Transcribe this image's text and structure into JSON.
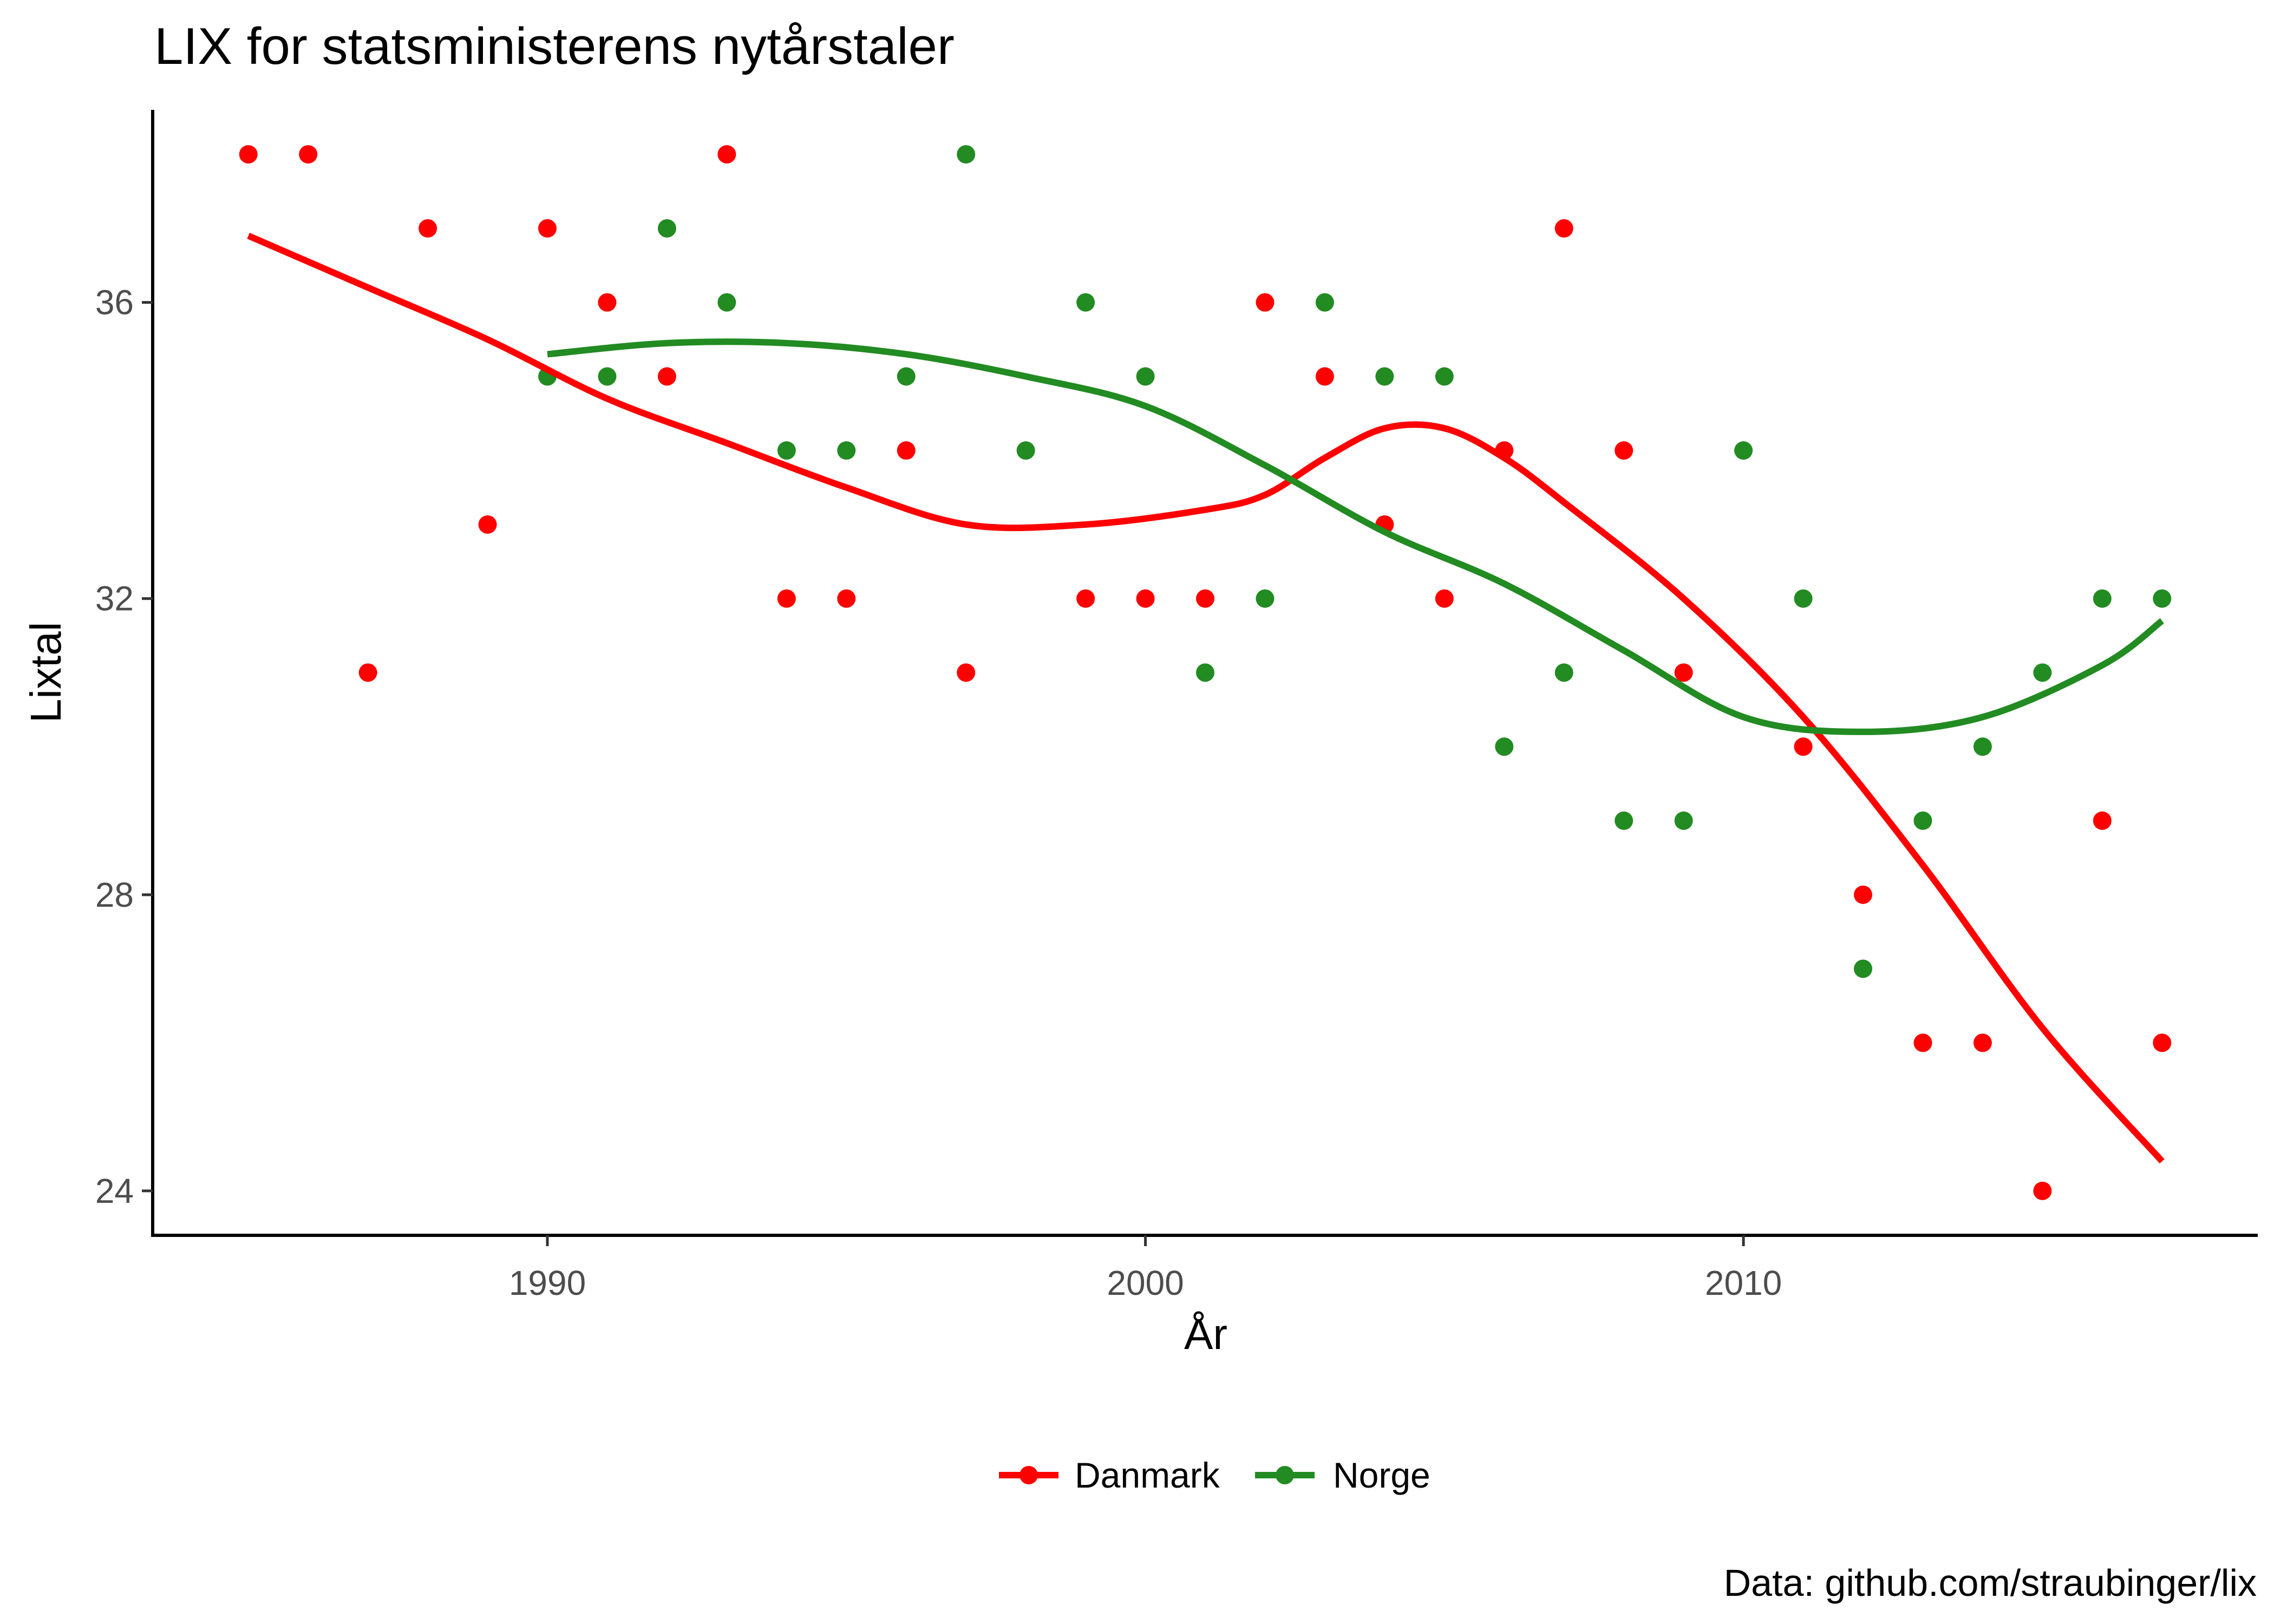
{
  "chart_data": {
    "type": "scatter",
    "title": "LIX for statsministerens nytårstaler",
    "xlabel": "År",
    "ylabel": "Lixtal",
    "caption": "Data: github.com/straubinger/lix",
    "xlim": [
      1983.4,
      2018.6
    ],
    "ylim": [
      23.4,
      38.6
    ],
    "xticks": [
      1990,
      2000,
      2010
    ],
    "yticks": [
      24,
      28,
      32,
      36
    ],
    "grid": false,
    "legend_position": "bottom",
    "colors": {
      "Danmark": "#ff0000",
      "Norge": "#228b22"
    },
    "series": [
      {
        "name": "Danmark",
        "points": [
          [
            1985,
            38
          ],
          [
            1986,
            38
          ],
          [
            1987,
            31
          ],
          [
            1988,
            37
          ],
          [
            1989,
            33
          ],
          [
            1990,
            37
          ],
          [
            1991,
            36
          ],
          [
            1992,
            35
          ],
          [
            1993,
            38
          ],
          [
            1994,
            32
          ],
          [
            1995,
            32
          ],
          [
            1996,
            34
          ],
          [
            1997,
            31
          ],
          [
            1999,
            32
          ],
          [
            2000,
            32
          ],
          [
            2001,
            32
          ],
          [
            2002,
            36
          ],
          [
            2003,
            35
          ],
          [
            2004,
            33
          ],
          [
            2005,
            32
          ],
          [
            2006,
            34
          ],
          [
            2007,
            37
          ],
          [
            2008,
            34
          ],
          [
            2009,
            31
          ],
          [
            2011,
            30
          ],
          [
            2012,
            28
          ],
          [
            2013,
            26
          ],
          [
            2014,
            26
          ],
          [
            2015,
            24
          ],
          [
            2016,
            29
          ],
          [
            2017,
            26
          ]
        ],
        "smooth": [
          [
            1985,
            36.9
          ],
          [
            1987,
            36.2
          ],
          [
            1989,
            35.5
          ],
          [
            1991,
            34.7
          ],
          [
            1993,
            34.1
          ],
          [
            1995,
            33.5
          ],
          [
            1997,
            33.0
          ],
          [
            1999,
            33.0
          ],
          [
            2001,
            33.2
          ],
          [
            2002,
            33.4
          ],
          [
            2003,
            33.9
          ],
          [
            2004,
            34.3
          ],
          [
            2005,
            34.3
          ],
          [
            2006,
            33.9
          ],
          [
            2007,
            33.3
          ],
          [
            2009,
            32.0
          ],
          [
            2011,
            30.4
          ],
          [
            2013,
            28.4
          ],
          [
            2015,
            26.2
          ],
          [
            2017,
            24.4
          ]
        ]
      },
      {
        "name": "Norge",
        "points": [
          [
            1990,
            35
          ],
          [
            1991,
            35
          ],
          [
            1992,
            37
          ],
          [
            1993,
            36
          ],
          [
            1994,
            34
          ],
          [
            1995,
            34
          ],
          [
            1996,
            35
          ],
          [
            1997,
            38
          ],
          [
            1998,
            34
          ],
          [
            1999,
            36
          ],
          [
            2000,
            35
          ],
          [
            2001,
            31
          ],
          [
            2002,
            32
          ],
          [
            2003,
            36
          ],
          [
            2004,
            35
          ],
          [
            2005,
            35
          ],
          [
            2006,
            30
          ],
          [
            2007,
            31
          ],
          [
            2008,
            29
          ],
          [
            2009,
            29
          ],
          [
            2010,
            34
          ],
          [
            2011,
            32
          ],
          [
            2012,
            27
          ],
          [
            2013,
            29
          ],
          [
            2014,
            30
          ],
          [
            2015,
            31
          ],
          [
            2016,
            32
          ],
          [
            2017,
            32
          ]
        ],
        "smooth": [
          [
            1990,
            35.3
          ],
          [
            1992,
            35.45
          ],
          [
            1994,
            35.45
          ],
          [
            1996,
            35.3
          ],
          [
            1998,
            35.0
          ],
          [
            2000,
            34.6
          ],
          [
            2002,
            33.8
          ],
          [
            2004,
            32.9
          ],
          [
            2006,
            32.2
          ],
          [
            2008,
            31.3
          ],
          [
            2010,
            30.4
          ],
          [
            2012,
            30.2
          ],
          [
            2014,
            30.4
          ],
          [
            2016,
            31.1
          ],
          [
            2017,
            31.7
          ]
        ]
      }
    ]
  }
}
